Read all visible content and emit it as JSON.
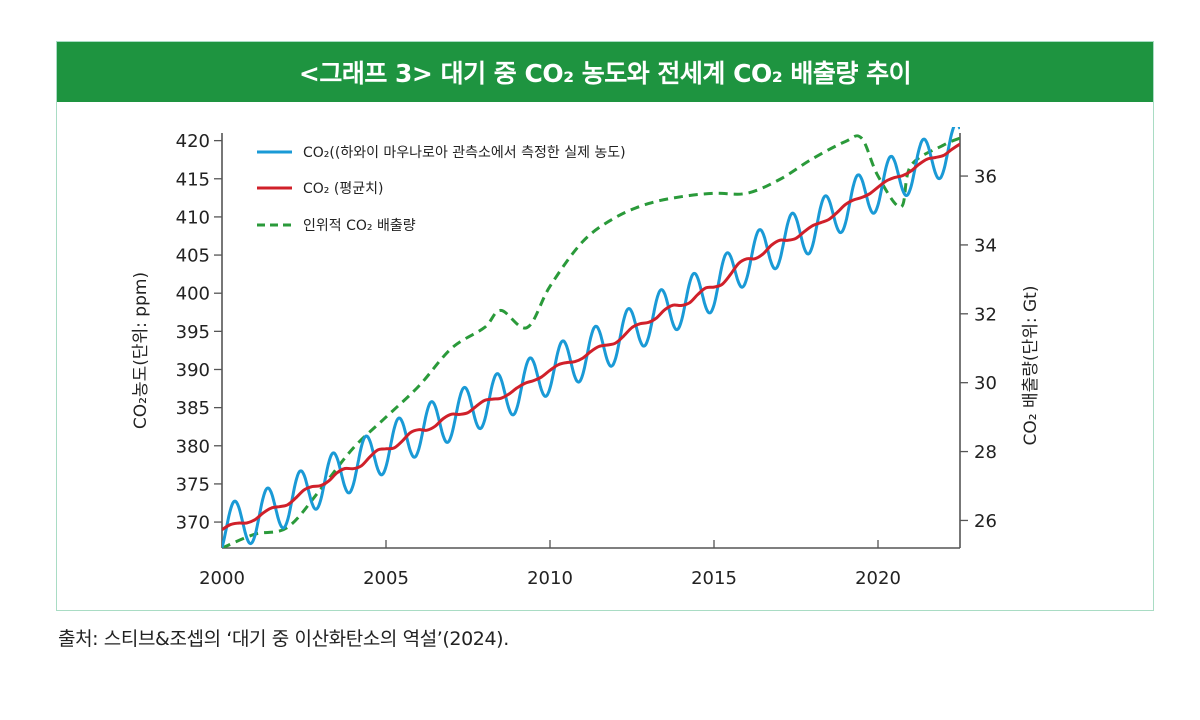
{
  "header": {
    "title": "<그래프 3> 대기 중 CO₂ 농도와 전세계 CO₂ 배출량 추이"
  },
  "source": "출처: 스티브&조셉의 ‘대기 중 이산화탄소의 역설’(2024).",
  "colors": {
    "title_bg": "#1e9440",
    "measured": "#1a9ad6",
    "average": "#d0202a",
    "emissions": "#2a9a3a",
    "frame_border": "#a9dcc4",
    "axis": "#555555"
  },
  "chart_data": {
    "type": "line",
    "title": "<그래프 3> 대기 중 CO₂ 농도와 전세계 CO₂ 배출량 추이",
    "xlabel": "",
    "ylabel": "CO₂농도(단위: ppm)",
    "y2label": "CO₂ 배출량(단위: Gt)",
    "xlim": [
      2000,
      2022.5
    ],
    "ylim": [
      366.6,
      421
    ],
    "y2lim": [
      25.2,
      37.25
    ],
    "x_ticks": [
      2000,
      2005,
      2010,
      2015,
      2020
    ],
    "x_tick_labels": [
      "2000",
      "2005",
      "2010",
      "2015",
      "2020"
    ],
    "y_ticks": [
      370,
      375,
      380,
      385,
      390,
      395,
      400,
      405,
      410,
      415,
      420
    ],
    "y_tick_labels": [
      "370",
      "375",
      "380",
      "385",
      "390",
      "395",
      "400",
      "405",
      "410",
      "415",
      "420"
    ],
    "y2_ticks": [
      26,
      28,
      30,
      32,
      34,
      36
    ],
    "y2_tick_labels": [
      "26",
      "28",
      "30",
      "32",
      "34",
      "36"
    ],
    "grid": false,
    "legend_position": "top-left",
    "legend": [
      {
        "label": "CO₂((하와이 마우나로아 관측소에서 측정한 실제 농도)",
        "style": "solid",
        "series": "measured"
      },
      {
        "label": "CO₂ (평균치)",
        "style": "solid",
        "series": "average"
      },
      {
        "label": "인위적 CO₂ 배출량",
        "style": "dashed",
        "series": "emissions"
      }
    ],
    "series": [
      {
        "name": "CO₂ 평균치",
        "axis": "left",
        "x": [
          2000,
          2001,
          2002,
          2003,
          2004,
          2005,
          2006,
          2007,
          2008,
          2009,
          2010,
          2011,
          2012,
          2013,
          2014,
          2015,
          2016,
          2017,
          2018,
          2019,
          2020,
          2021,
          2022,
          2022.5
        ],
        "values": [
          369.0,
          370.5,
          372.6,
          375.1,
          377.2,
          379.6,
          381.9,
          383.8,
          385.6,
          387.4,
          389.9,
          391.7,
          393.8,
          396.5,
          398.6,
          400.8,
          404.3,
          406.6,
          408.5,
          411.4,
          413.9,
          416.2,
          418.4,
          419.2
        ]
      },
      {
        "name": "CO₂ 실제 농도 (마우나로아)",
        "axis": "left",
        "seasonal_amplitude_ppm": 3.2,
        "note": "monthly oscillation around the average series, peak in May"
      },
      {
        "name": "인위적 CO₂ 배출량",
        "axis": "right",
        "x": [
          2000,
          2001,
          2002,
          2003,
          2004,
          2005,
          2006,
          2007,
          2008,
          2008.5,
          2009.3,
          2010,
          2011,
          2012,
          2013,
          2014,
          2015,
          2016,
          2017,
          2018,
          2019,
          2019.5,
          2020,
          2020.7,
          2021,
          2022,
          2022.5
        ],
        "values": [
          25.2,
          25.6,
          25.8,
          26.9,
          28.1,
          29.0,
          29.9,
          31.0,
          31.6,
          32.1,
          31.6,
          32.8,
          34.1,
          34.8,
          35.2,
          35.4,
          35.5,
          35.5,
          35.9,
          36.5,
          37.0,
          37.1,
          36.0,
          35.1,
          36.3,
          36.9,
          37.1
        ]
      }
    ]
  }
}
